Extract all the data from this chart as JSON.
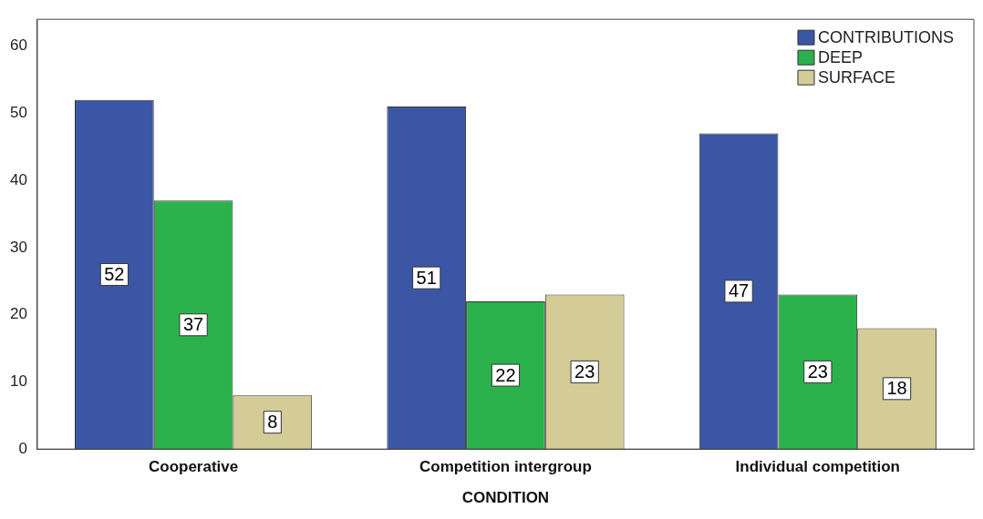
{
  "chart_data": {
    "type": "bar",
    "xlabel": "CONDITION",
    "categories": [
      "Cooperative",
      "Competition intergroup",
      "Individual competition"
    ],
    "series": [
      {
        "name": "CONTRIBUTIONS",
        "color": "#3c56a6",
        "values": [
          52,
          51,
          47
        ]
      },
      {
        "name": "DEEP",
        "color": "#2bb24c",
        "values": [
          37,
          22,
          23
        ]
      },
      {
        "name": "SURFACE",
        "color": "#d4cc96",
        "values": [
          8,
          23,
          18
        ]
      }
    ],
    "ylim": [
      0,
      64
    ],
    "yticks": [
      0,
      10,
      20,
      30,
      40,
      50,
      60
    ],
    "grid": false,
    "legend": "top right",
    "data_labels": true
  }
}
